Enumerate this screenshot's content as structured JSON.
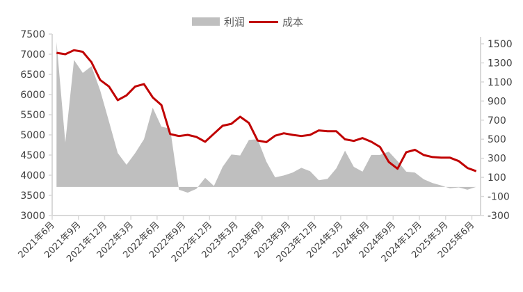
{
  "legend": {
    "profit_label": "利润",
    "cost_label": "成本"
  },
  "colors": {
    "profit_area": "#bfbfbf",
    "cost_line": "#c00000",
    "axis": "#d9d9d9",
    "text": "#404040"
  },
  "chart_data": {
    "type": "line+area",
    "title": "",
    "xlabel": "",
    "ylabel_left": "",
    "ylabel_right": "",
    "legend_position": "top",
    "grid": false,
    "x_tick_labels": [
      "2021年6月",
      "2021年9月",
      "2021年12月",
      "2022年3月",
      "2022年6月",
      "2022年9月",
      "2022年12月",
      "2023年3月",
      "2023年6月",
      "2023年9月",
      "2023年12月",
      "2024年3月",
      "2024年6月",
      "2024年9月",
      "2024年12月",
      "2025年3月",
      "2025年6月"
    ],
    "left_axis": {
      "min": 3000,
      "max": 7500,
      "step": 500,
      "ticks": [
        "3000",
        "3500",
        "4000",
        "4500",
        "5000",
        "5500",
        "6000",
        "6500",
        "7000",
        "7500"
      ]
    },
    "right_axis": {
      "min": -300,
      "max": 1500,
      "step": 200,
      "ticks": [
        "-300",
        "-100",
        "100",
        "300",
        "500",
        "700",
        "900",
        "1100",
        "1300",
        "1500"
      ]
    },
    "x": [
      "2021-06",
      "2021-07",
      "2021-08",
      "2021-09",
      "2021-10",
      "2021-11",
      "2021-12",
      "2022-01",
      "2022-02",
      "2022-03",
      "2022-04",
      "2022-05",
      "2022-06",
      "2022-07",
      "2022-08",
      "2022-09",
      "2022-10",
      "2022-11",
      "2022-12",
      "2023-01",
      "2023-02",
      "2023-03",
      "2023-04",
      "2023-05",
      "2023-06",
      "2023-07",
      "2023-08",
      "2023-09",
      "2023-10",
      "2023-11",
      "2023-12",
      "2024-01",
      "2024-02",
      "2024-03",
      "2024-04",
      "2024-05",
      "2024-06",
      "2024-07",
      "2024-08",
      "2024-09",
      "2024-10",
      "2024-11",
      "2024-12",
      "2025-01",
      "2025-02",
      "2025-03",
      "2025-04",
      "2025-05",
      "2025-06"
    ],
    "series": [
      {
        "name": "利润",
        "type": "area",
        "axis": "right",
        "values": [
          1520,
          465,
          1330,
          1195,
          1265,
          1010,
          685,
          355,
          232,
          355,
          500,
          830,
          632,
          610,
          -30,
          -60,
          -20,
          95,
          10,
          210,
          340,
          330,
          492,
          500,
          265,
          100,
          120,
          150,
          200,
          165,
          70,
          85,
          195,
          380,
          210,
          160,
          335,
          335,
          370,
          270,
          160,
          150,
          80,
          40,
          15,
          -15,
          -5,
          -30,
          0
        ]
      },
      {
        "name": "成本",
        "type": "line",
        "axis": "left",
        "values": [
          7035,
          7000,
          7100,
          7060,
          6800,
          6360,
          6200,
          5860,
          5980,
          6200,
          6260,
          5930,
          5740,
          5020,
          4970,
          5000,
          4950,
          4830,
          5030,
          5225,
          5275,
          5450,
          5295,
          4860,
          4820,
          4980,
          5040,
          5000,
          4970,
          5000,
          5110,
          5090,
          5090,
          4890,
          4850,
          4920,
          4830,
          4700,
          4330,
          4160,
          4570,
          4630,
          4500,
          4450,
          4435,
          4435,
          4350,
          4180,
          4100
        ]
      }
    ]
  }
}
